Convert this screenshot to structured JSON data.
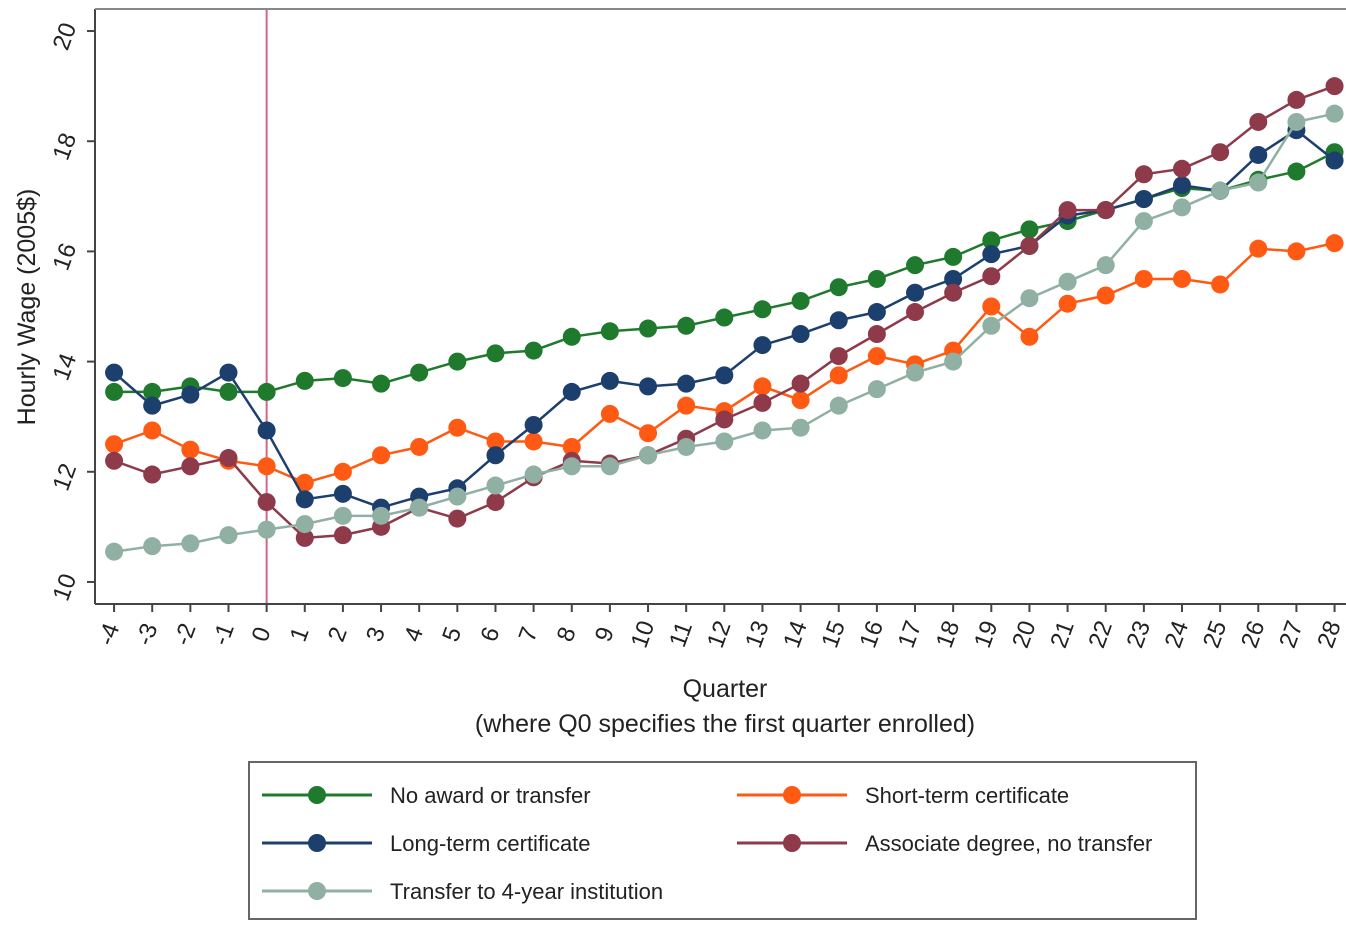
{
  "chart_data": {
    "type": "line",
    "title": "",
    "xlabel": "Quarter",
    "xlabel_sub": "(where Q0 specifies the first quarter enrolled)",
    "ylabel": "Hourly Wage (2005$)",
    "x": [
      -4,
      -3,
      -2,
      -1,
      0,
      1,
      2,
      3,
      4,
      5,
      6,
      7,
      8,
      9,
      10,
      11,
      12,
      13,
      14,
      15,
      16,
      17,
      18,
      19,
      20,
      21,
      22,
      23,
      24,
      25,
      26,
      27,
      28
    ],
    "x_tick_labels": [
      "-4",
      "-3",
      "-2",
      "-1",
      "0",
      "1",
      "2",
      "3",
      "4",
      "5",
      "6",
      "7",
      "8",
      "9",
      "10",
      "11",
      "12",
      "13",
      "14",
      "15",
      "16",
      "17",
      "18",
      "19",
      "20",
      "21",
      "22",
      "23",
      "24",
      "25",
      "26",
      "27",
      "28"
    ],
    "y_ticks": [
      10,
      12,
      14,
      16,
      18,
      20
    ],
    "y_tick_labels": [
      "10",
      "12",
      "14",
      "16",
      "18",
      "20"
    ],
    "ylim": [
      9.6,
      20.4
    ],
    "xlim": [
      -4.5,
      28.3
    ],
    "reference_line_x": 0,
    "reference_line_color": "#d6648c",
    "grid": false,
    "legend_position": "bottom",
    "series": [
      {
        "name": "No award or transfer",
        "color": "#1f7a2e",
        "values": [
          13.45,
          13.45,
          13.55,
          13.45,
          13.45,
          13.65,
          13.7,
          13.6,
          13.8,
          14.0,
          14.15,
          14.2,
          14.45,
          14.55,
          14.6,
          14.65,
          14.8,
          14.95,
          15.1,
          15.35,
          15.5,
          15.75,
          15.9,
          16.2,
          16.4,
          16.55,
          16.75,
          16.95,
          17.15,
          17.1,
          17.3,
          17.45,
          17.8
        ]
      },
      {
        "name": "Short-term certificate",
        "color": "#ff5a14",
        "values": [
          12.5,
          12.75,
          12.4,
          12.2,
          12.1,
          11.8,
          12.0,
          12.3,
          12.45,
          12.8,
          12.55,
          12.55,
          12.45,
          13.05,
          12.7,
          13.2,
          13.1,
          13.55,
          13.3,
          13.75,
          14.1,
          13.95,
          14.2,
          15.0,
          14.45,
          15.05,
          15.2,
          15.5,
          15.5,
          15.4,
          16.05,
          16.0,
          16.15
        ]
      },
      {
        "name": "Long-term certificate",
        "color": "#1c3f6e",
        "values": [
          13.8,
          13.2,
          13.4,
          13.8,
          12.75,
          11.5,
          11.6,
          11.35,
          11.55,
          11.7,
          12.3,
          12.85,
          13.45,
          13.65,
          13.55,
          13.6,
          13.75,
          14.3,
          14.5,
          14.75,
          14.9,
          15.25,
          15.5,
          15.95,
          16.1,
          16.65,
          16.75,
          16.95,
          17.2,
          17.1,
          17.75,
          18.2,
          17.65
        ]
      },
      {
        "name": "Associate degree, no transfer",
        "color": "#8e3a4a",
        "values": [
          12.2,
          11.95,
          12.1,
          12.25,
          11.45,
          10.8,
          10.85,
          11.0,
          11.35,
          11.15,
          11.45,
          11.9,
          12.2,
          12.15,
          12.3,
          12.6,
          12.95,
          13.25,
          13.6,
          14.1,
          14.5,
          14.9,
          15.25,
          15.55,
          16.1,
          16.75,
          16.75,
          17.4,
          17.5,
          17.8,
          18.35,
          18.75,
          19.0
        ]
      },
      {
        "name": "Transfer to 4-year institution",
        "color": "#8fb0a2",
        "values": [
          10.55,
          10.65,
          10.7,
          10.85,
          10.95,
          11.05,
          11.2,
          11.2,
          11.35,
          11.55,
          11.75,
          11.95,
          12.1,
          12.1,
          12.3,
          12.45,
          12.55,
          12.75,
          12.8,
          13.2,
          13.5,
          13.8,
          14.0,
          14.65,
          15.15,
          15.45,
          15.75,
          16.55,
          16.8,
          17.1,
          17.25,
          18.35,
          18.5
        ]
      }
    ]
  }
}
